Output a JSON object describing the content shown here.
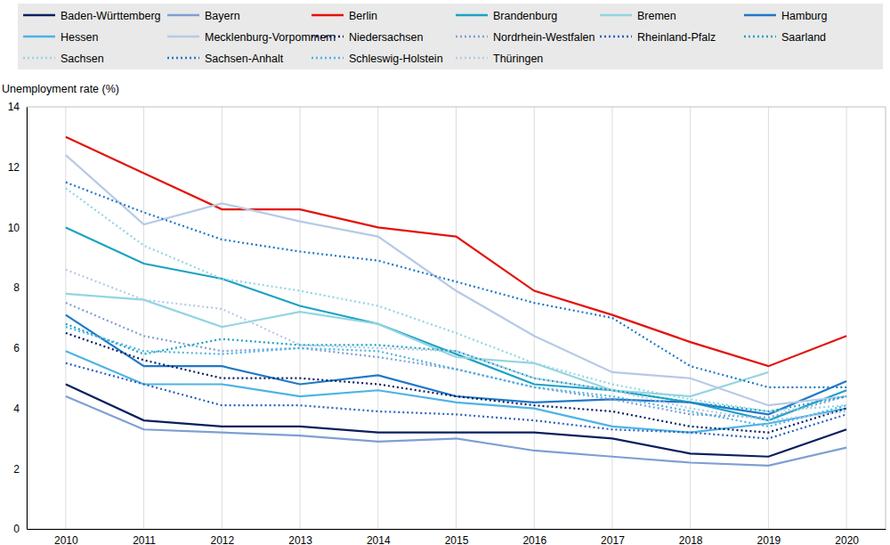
{
  "chart_data": {
    "type": "line",
    "y_label": "Unemployment rate (%)",
    "categories": [
      "2010",
      "2011",
      "2012",
      "2013",
      "2014",
      "2015",
      "2016",
      "2017",
      "2018",
      "2019",
      "2020"
    ],
    "ylim": [
      0,
      14
    ],
    "yticks": [
      0,
      2,
      4,
      6,
      8,
      10,
      12,
      14
    ],
    "grid": true,
    "legend": "top",
    "series": [
      {
        "name": "Baden-Württemberg",
        "color": "#0b1f5e",
        "line_style": "solid",
        "values": [
          4.8,
          3.6,
          3.4,
          3.4,
          3.2,
          3.2,
          3.2,
          3.0,
          2.5,
          2.4,
          3.3
        ]
      },
      {
        "name": "Bayern",
        "color": "#7d9fd3",
        "line_style": "solid",
        "values": [
          4.4,
          3.3,
          3.2,
          3.1,
          2.9,
          3.0,
          2.6,
          2.4,
          2.2,
          2.1,
          2.7
        ]
      },
      {
        "name": "Berlin",
        "color": "#e3120b",
        "line_style": "solid",
        "values": [
          13.0,
          11.8,
          10.6,
          10.6,
          10.0,
          9.7,
          7.9,
          7.1,
          6.2,
          5.4,
          6.4
        ]
      },
      {
        "name": "Brandenburg",
        "color": "#1ba2c4",
        "line_style": "solid",
        "values": [
          10.0,
          8.8,
          8.3,
          7.4,
          6.8,
          5.8,
          4.8,
          4.6,
          4.2,
          3.6,
          4.6
        ]
      },
      {
        "name": "Bremen",
        "color": "#93d5e2",
        "line_style": "solid",
        "values": [
          7.8,
          7.6,
          6.7,
          7.2,
          6.8,
          5.7,
          5.5,
          4.6,
          4.4,
          5.2,
          null
        ]
      },
      {
        "name": "Hamburg",
        "color": "#1f78c8",
        "line_style": "solid",
        "values": [
          7.1,
          5.4,
          5.4,
          4.8,
          5.1,
          4.4,
          4.2,
          4.3,
          4.2,
          3.8,
          4.9
        ]
      },
      {
        "name": "Hessen",
        "color": "#4db3e6",
        "line_style": "solid",
        "values": [
          5.9,
          4.8,
          4.8,
          4.4,
          4.6,
          4.2,
          4.0,
          3.4,
          3.2,
          3.5,
          4.0
        ]
      },
      {
        "name": "Mecklenburg-Vorpommern",
        "color": "#b7c9e6",
        "line_style": "solid",
        "values": [
          12.4,
          10.1,
          10.8,
          10.2,
          9.7,
          7.9,
          6.4,
          5.2,
          5.0,
          4.1,
          4.4
        ]
      },
      {
        "name": "Niedersachsen",
        "color": "#0b1f5e",
        "line_style": "dotted",
        "values": [
          6.5,
          5.6,
          5.0,
          5.0,
          4.8,
          4.4,
          4.1,
          3.9,
          3.4,
          3.2,
          4.0
        ]
      },
      {
        "name": "Nordrhein-Westfalen",
        "color": "#7d9fd3",
        "line_style": "dotted",
        "values": [
          7.5,
          6.4,
          5.9,
          6.0,
          5.7,
          5.3,
          4.7,
          4.3,
          3.8,
          3.7,
          4.4
        ]
      },
      {
        "name": "Rheinland-Pfalz",
        "color": "#2a5fc0",
        "line_style": "dotted",
        "values": [
          5.5,
          4.8,
          4.1,
          4.1,
          3.9,
          3.8,
          3.6,
          3.3,
          3.2,
          3.0,
          3.8
        ]
      },
      {
        "name": "Saarland",
        "color": "#1ba2c4",
        "line_style": "dotted",
        "values": [
          6.8,
          5.8,
          6.3,
          6.1,
          6.1,
          5.9,
          5.0,
          4.6,
          4.2,
          3.9,
          4.4
        ]
      },
      {
        "name": "Sachsen",
        "color": "#93d5e2",
        "line_style": "dotted",
        "values": [
          11.3,
          9.4,
          8.3,
          7.9,
          7.4,
          6.5,
          5.5,
          4.8,
          4.3,
          3.9,
          4.1
        ]
      },
      {
        "name": "Sachsen-Anhalt",
        "color": "#1f78c8",
        "line_style": "dotted",
        "values": [
          11.5,
          10.5,
          9.6,
          9.2,
          8.9,
          8.2,
          7.5,
          7.0,
          5.4,
          4.7,
          4.7
        ]
      },
      {
        "name": "Schleswig-Holstein",
        "color": "#4db3e6",
        "line_style": "dotted",
        "values": [
          6.7,
          5.9,
          5.8,
          6.0,
          5.9,
          5.3,
          4.7,
          4.4,
          3.9,
          3.4,
          4.1
        ]
      },
      {
        "name": "Thüringen",
        "color": "#b7c9e6",
        "line_style": "dotted",
        "values": [
          8.6,
          7.6,
          7.3,
          6.1,
          6.0,
          5.9,
          5.0,
          4.6,
          4.0,
          3.6,
          3.9
        ]
      }
    ]
  }
}
